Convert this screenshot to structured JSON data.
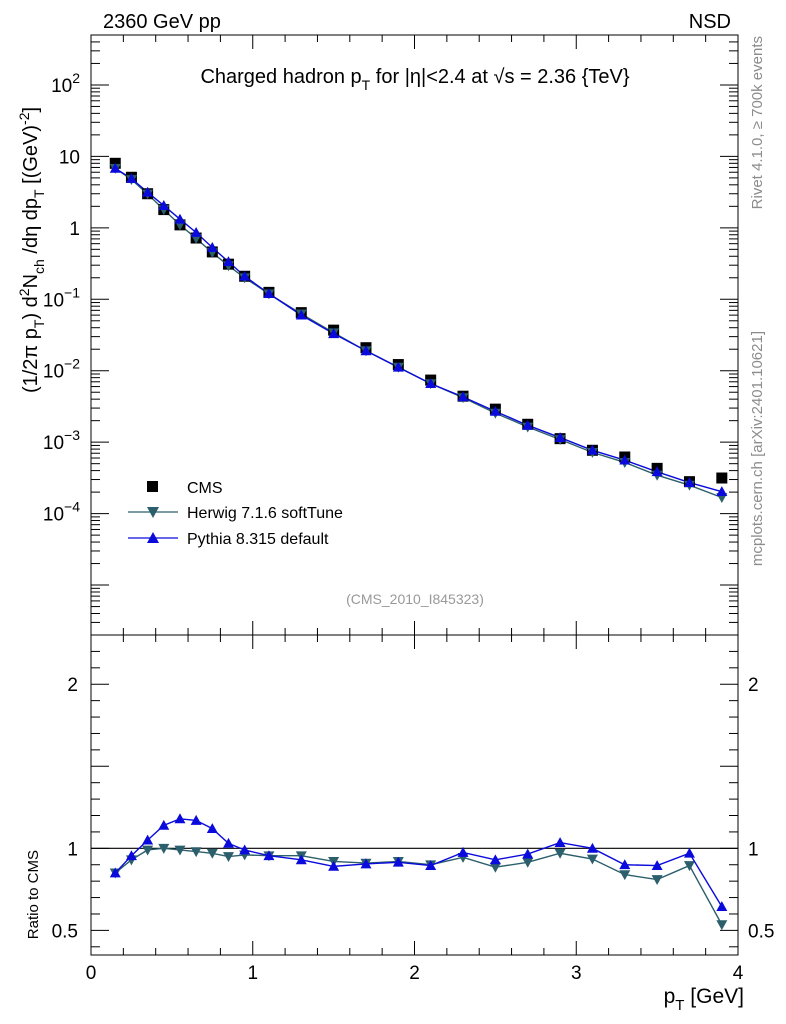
{
  "header": {
    "left": "2360 GeV pp",
    "right": "NSD",
    "title_main": "Charged hadron p",
    "title_sub": "T",
    "title_rest": " for |η|<2.4 at √s = 2.36 {TeV}",
    "analysis_tag": "(CMS_2010_I845323)",
    "side_text_top": "Rivet 4.1.0, ≥ 700k events",
    "side_text_bottom": "mcplots.cern.ch [arXiv:2401.10621]"
  },
  "colors": {
    "cms": "#000000",
    "herwig": "#2b5f6b",
    "pythia": "#0a0adc"
  },
  "chart_data": [
    {
      "type": "scatter",
      "panel": "main",
      "title": "Charged hadron pT for |η|<2.4 at √s = 2.36 {TeV}",
      "ylabel": "(1/2π pT) d²Nch/dη dpT [(GeV)⁻²]",
      "ylabel_parts": {
        "p1": "(1/2π p",
        "s1": "T",
        "p2": ") d",
        "u2": "2",
        "p3": "N",
        "s3": "ch",
        "p4": " /dη  dp",
        "s4": "T",
        "p5": " [(GeV)",
        "u5": "-2",
        "p6": "]"
      },
      "yscale": "log",
      "xlim": [
        0,
        4
      ],
      "ylim": [
        2e-06,
        500
      ],
      "ytick_labels": [
        {
          "v": 100,
          "m": "10",
          "e": "2"
        },
        {
          "v": 10,
          "m": "10",
          "e": ""
        },
        {
          "v": 1,
          "m": "1",
          "e": ""
        },
        {
          "v": 0.1,
          "m": "10",
          "e": "−1"
        },
        {
          "v": 0.01,
          "m": "10",
          "e": "−2"
        },
        {
          "v": 0.001,
          "m": "10",
          "e": "−3"
        },
        {
          "v": 0.0001,
          "m": "10",
          "e": "−4"
        }
      ],
      "x": [
        0.15,
        0.25,
        0.35,
        0.45,
        0.55,
        0.65,
        0.75,
        0.85,
        0.95,
        1.1,
        1.3,
        1.5,
        1.7,
        1.9,
        2.1,
        2.3,
        2.5,
        2.7,
        2.9,
        3.1,
        3.3,
        3.5,
        3.7,
        3.9
      ],
      "series": [
        {
          "name": "CMS",
          "marker": "square",
          "values": [
            8.0,
            5.1,
            3.0,
            1.8,
            1.1,
            0.72,
            0.46,
            0.31,
            0.21,
            0.125,
            0.065,
            0.037,
            0.021,
            0.0122,
            0.0074,
            0.0044,
            0.0029,
            0.00178,
            0.00112,
            0.00077,
            0.00062,
            0.00043,
            0.00028,
            0.000315
          ]
        },
        {
          "name": "Herwig 7.1.6 softTune",
          "marker": "triangle-down",
          "values": [
            6.8,
            4.75,
            2.97,
            1.8,
            1.1,
            0.71,
            0.45,
            0.295,
            0.2,
            0.119,
            0.0625,
            0.034,
            0.019,
            0.0112,
            0.0066,
            0.0042,
            0.00255,
            0.00163,
            0.00109,
            0.00072,
            0.00052,
            0.000345,
            0.00025,
            0.000168
          ]
        },
        {
          "name": "Pythia 8.315 default",
          "marker": "triangle-up",
          "values": [
            6.8,
            4.9,
            3.15,
            2.05,
            1.32,
            0.86,
            0.53,
            0.335,
            0.21,
            0.12,
            0.06,
            0.033,
            0.019,
            0.0112,
            0.0066,
            0.0043,
            0.0027,
            0.00172,
            0.00116,
            0.00077,
            0.00056,
            0.000385,
            0.000272,
            0.000203
          ]
        }
      ],
      "legend": [
        "CMS",
        "Herwig 7.1.6 softTune",
        "Pythia 8.315 default"
      ],
      "legend_position": "bottom-left"
    },
    {
      "type": "line",
      "panel": "ratio",
      "ylabel": "Ratio to CMS",
      "xlabel_main": "p",
      "xlabel_sub": "T",
      "xlabel_rest": " [GeV]",
      "xlim": [
        0,
        4
      ],
      "ylim": [
        0.35,
        2.3
      ],
      "xtick_labels": [
        "0",
        "1",
        "2",
        "3",
        "4"
      ],
      "ytick_labels": [
        "0.5",
        "1",
        "2"
      ],
      "reference_line": 1,
      "x": [
        0.15,
        0.25,
        0.35,
        0.45,
        0.55,
        0.65,
        0.75,
        0.85,
        0.95,
        1.1,
        1.3,
        1.5,
        1.7,
        1.9,
        2.1,
        2.3,
        2.5,
        2.7,
        2.9,
        3.1,
        3.3,
        3.5,
        3.7,
        3.9
      ],
      "series": [
        {
          "name": "Herwig 7.1.6 softTune",
          "values": [
            0.85,
            0.93,
            0.99,
            1.0,
            0.99,
            0.98,
            0.97,
            0.95,
            0.96,
            0.955,
            0.955,
            0.92,
            0.91,
            0.92,
            0.9,
            0.945,
            0.885,
            0.915,
            0.97,
            0.935,
            0.84,
            0.81,
            0.895,
            0.535
          ]
        },
        {
          "name": "Pythia 8.315 default",
          "values": [
            0.85,
            0.955,
            1.05,
            1.14,
            1.18,
            1.17,
            1.12,
            1.03,
            0.99,
            0.955,
            0.93,
            0.89,
            0.905,
            0.915,
            0.895,
            0.975,
            0.93,
            0.965,
            1.035,
            1.0,
            0.9,
            0.895,
            0.97,
            0.645
          ]
        }
      ]
    }
  ]
}
